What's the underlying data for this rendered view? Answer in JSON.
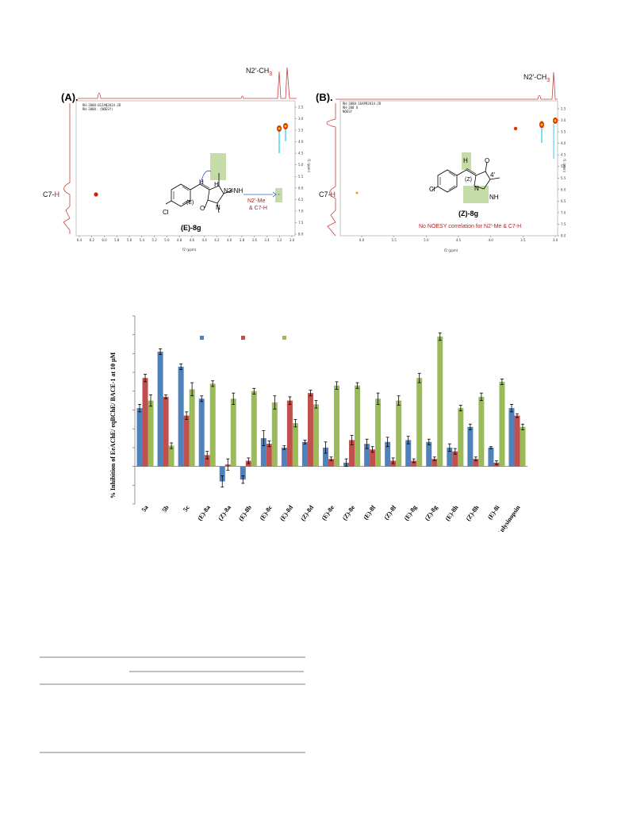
{
  "nmr_panels": [
    {
      "label": "(A).",
      "header_lines": [
        "RH-2008-01JAN2014-2D",
        "RH-2008. (NOESY)"
      ],
      "peak_top": "N2'-CH",
      "peak_top_sub": "3",
      "peak_left_prefix": "C7-",
      "peak_left_h": "H",
      "f2_axis_label": "f2 (ppm)",
      "f1_axis_label": "f1 (ppm)",
      "f2_ticks": [
        "6.4",
        "6.2",
        "6.0",
        "5.8",
        "5.6",
        "5.4",
        "5.2",
        "5.0",
        "4.8",
        "4.6",
        "4.4",
        "4.2",
        "4.0",
        "3.8",
        "3.6",
        "3.4",
        "3.2",
        "3.0"
      ],
      "f1_ticks": [
        "2.5",
        "3.0",
        "3.5",
        "4.0",
        "4.5",
        "5.0",
        "5.5",
        "6.0",
        "6.5",
        "7.0",
        "7.5",
        "8.0"
      ],
      "compound": "(E)-8g",
      "stereo": "(E)",
      "correlation_note_1": "N2'-Me",
      "correlation_note_2": "& C7-H"
    },
    {
      "label": "(B).",
      "header_lines": [
        "RH-2080-16APR2014-2D",
        "RH-200 U",
        "NOESY"
      ],
      "peak_top": "N2'-CH",
      "peak_top_sub": "3",
      "peak_left_prefix": "C7-",
      "peak_left_h": "H",
      "f2_axis_label": "f2 (ppm)",
      "f1_axis_label": "f1 (ppm)",
      "f2_ticks": [
        "6.0",
        "5.5",
        "5.0",
        "4.5",
        "4.0",
        "3.5",
        "3.0"
      ],
      "f1_ticks": [
        "2.5",
        "3.0",
        "3.5",
        "4.0",
        "4.5",
        "5.0",
        "5.5",
        "6.0",
        "6.5",
        "7.0",
        "7.5",
        "8.0"
      ],
      "compound": "(Z)-8g",
      "stereo": "(Z)",
      "no_correlation_note": "No NOESY correlation for N2'-Me & C7-H"
    }
  ],
  "mol_atoms": {
    "cl": "Cl",
    "h": "H",
    "n": "N",
    "o": "O",
    "nh": "NH",
    "eq_nh": "=NH",
    "n1p": "1'",
    "n2p": "N2'",
    "n3p": "3'",
    "n4p": "4'",
    "c2p": "2'",
    "r1": "1",
    "r2": "2",
    "r3": "3",
    "r4": "4",
    "r5": "5",
    "r6": "6"
  },
  "chart_data": {
    "type": "bar",
    "ylabel": "% Inhibition of EeAChE/ eqBChE/ BACE-1 at 10 μM",
    "ylim": [
      -20,
      80
    ],
    "categories": [
      "5a",
      "5b",
      "5c",
      "(E)-8a",
      "(Z)-8a",
      "(E)-8b",
      "(E)-8c",
      "(E)-8d",
      "(Z)-8d",
      "(E)-8e",
      "(Z)-8e",
      "(E)-8f",
      "(Z)-8f",
      "(E)-8g",
      "(Z)-8g",
      "(E)-8h",
      "(Z)-8h",
      "(E)-8i",
      "Aplysinopsin"
    ],
    "series": [
      {
        "color": "#4f81bd",
        "values": [
          31,
          61,
          53,
          36,
          -8,
          -7,
          15,
          10,
          13,
          10,
          2,
          12,
          13,
          14,
          13,
          10,
          21,
          10,
          31
        ]
      },
      {
        "color": "#c0504d",
        "values": [
          47,
          37,
          27,
          6,
          1,
          3,
          12,
          35,
          39,
          4,
          14,
          9,
          3,
          3,
          4,
          8,
          4,
          2,
          27
        ]
      },
      {
        "color": "#9bbb59",
        "values": [
          35,
          11,
          41,
          44,
          36,
          40,
          34,
          23,
          33,
          43,
          43,
          36,
          35,
          47,
          69,
          31,
          37,
          45,
          21
        ]
      }
    ],
    "errors": [
      [
        2,
        1.5,
        1.5,
        1.5,
        3,
        2,
        4,
        1,
        1,
        3,
        2,
        2.5,
        2.5,
        2,
        1.5,
        2,
        1.5,
        0.5,
        2
      ],
      [
        2,
        1,
        2,
        2,
        3,
        1.5,
        1.5,
        2,
        1.5,
        1,
        2.5,
        1.5,
        1.5,
        1,
        1,
        1.5,
        1,
        1,
        1
      ],
      [
        3,
        1.5,
        3.5,
        1.5,
        3,
        1.5,
        3.5,
        2,
        2,
        2,
        1.5,
        3,
        2.5,
        2.5,
        2,
        1.5,
        2,
        1.5,
        1.5
      ]
    ]
  }
}
